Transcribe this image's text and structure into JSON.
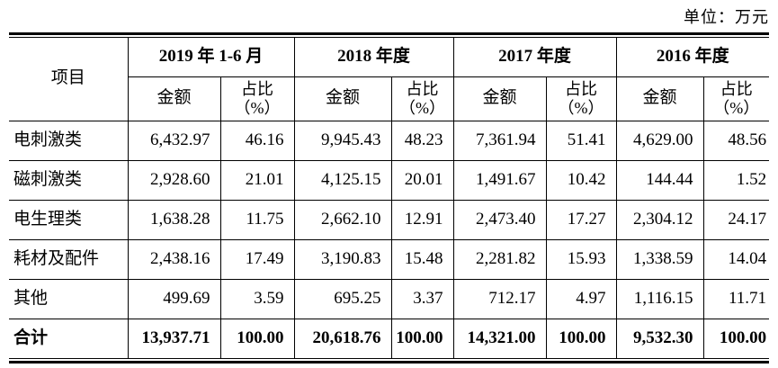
{
  "unit_label": "单位：万元",
  "table": {
    "item_header": "项目",
    "amount_header": "金额",
    "ratio_header": "占比\n（%）",
    "period_headers": [
      "2019 年 1-6 月",
      "2018 年度",
      "2017 年度",
      "2016 年度"
    ],
    "rows": [
      {
        "label": "电刺激类",
        "values": [
          "6,432.97",
          "46.16",
          "9,945.43",
          "48.23",
          "7,361.94",
          "51.41",
          "4,629.00",
          "48.56"
        ]
      },
      {
        "label": "磁刺激类",
        "values": [
          "2,928.60",
          "21.01",
          "4,125.15",
          "20.01",
          "1,491.67",
          "10.42",
          "144.44",
          "1.52"
        ]
      },
      {
        "label": "电生理类",
        "values": [
          "1,638.28",
          "11.75",
          "2,662.10",
          "12.91",
          "2,473.40",
          "17.27",
          "2,304.12",
          "24.17"
        ]
      },
      {
        "label": "耗材及配件",
        "values": [
          "2,438.16",
          "17.49",
          "3,190.83",
          "15.48",
          "2,281.82",
          "15.93",
          "1,338.59",
          "14.04"
        ]
      },
      {
        "label": "其他",
        "values": [
          "499.69",
          "3.59",
          "695.25",
          "3.37",
          "712.17",
          "4.97",
          "1,116.15",
          "11.71"
        ]
      }
    ],
    "total_row": {
      "label": "合计",
      "values": [
        "13,937.71",
        "100.00",
        "20,618.76",
        "100.00",
        "14,321.00",
        "100.00",
        "9,532.30",
        "100.00"
      ]
    }
  }
}
